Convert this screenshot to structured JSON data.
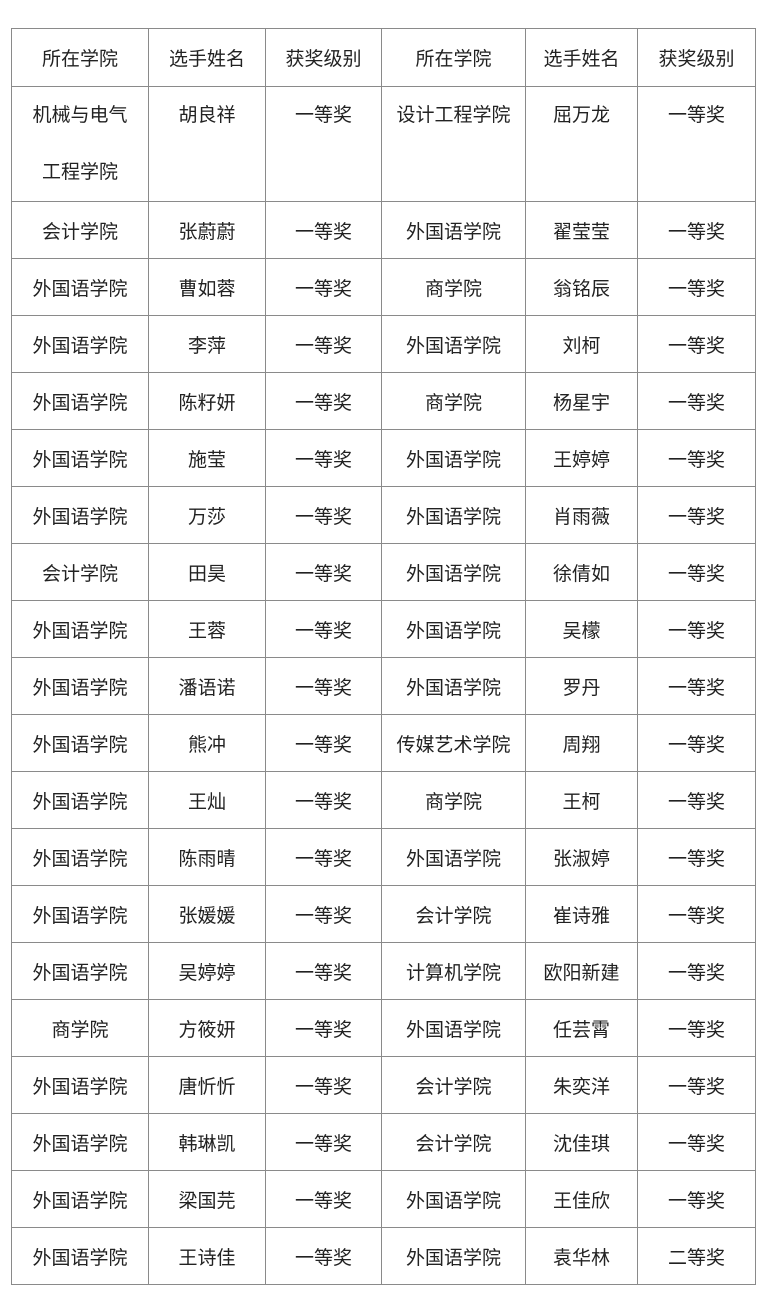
{
  "headers": [
    "所在学院",
    "选手姓名",
    "获奖级别",
    "所在学院",
    "选手姓名",
    "获奖级别"
  ],
  "rows": [
    [
      "机械与电气工程学院",
      "胡良祥",
      "一等奖",
      "设计工程学院",
      "屈万龙",
      "一等奖"
    ],
    [
      "会计学院",
      "张蔚蔚",
      "一等奖",
      "外国语学院",
      "翟莹莹",
      "一等奖"
    ],
    [
      "外国语学院",
      "曹如蓉",
      "一等奖",
      "商学院",
      "翁铭辰",
      "一等奖"
    ],
    [
      "外国语学院",
      "李萍",
      "一等奖",
      "外国语学院",
      "刘柯",
      "一等奖"
    ],
    [
      "外国语学院",
      "陈籽妍",
      "一等奖",
      "商学院",
      "杨星宇",
      "一等奖"
    ],
    [
      "外国语学院",
      "施莹",
      "一等奖",
      "外国语学院",
      "王婷婷",
      "一等奖"
    ],
    [
      "外国语学院",
      "万莎",
      "一等奖",
      "外国语学院",
      "肖雨薇",
      "一等奖"
    ],
    [
      "会计学院",
      "田昊",
      "一等奖",
      "外国语学院",
      "徐倩如",
      "一等奖"
    ],
    [
      "外国语学院",
      "王蓉",
      "一等奖",
      "外国语学院",
      "吴檬",
      "一等奖"
    ],
    [
      "外国语学院",
      "潘语诺",
      "一等奖",
      "外国语学院",
      "罗丹",
      "一等奖"
    ],
    [
      "外国语学院",
      "熊冲",
      "一等奖",
      "传媒艺术学院",
      "周翔",
      "一等奖"
    ],
    [
      "外国语学院",
      "王灿",
      "一等奖",
      "商学院",
      "王柯",
      "一等奖"
    ],
    [
      "外国语学院",
      "陈雨晴",
      "一等奖",
      "外国语学院",
      "张淑婷",
      "一等奖"
    ],
    [
      "外国语学院",
      "张媛媛",
      "一等奖",
      "会计学院",
      "崔诗雅",
      "一等奖"
    ],
    [
      "外国语学院",
      "吴婷婷",
      "一等奖",
      "计算机学院",
      "欧阳新建",
      "一等奖"
    ],
    [
      "商学院",
      "方筱妍",
      "一等奖",
      "外国语学院",
      "任芸霄",
      "一等奖"
    ],
    [
      "外国语学院",
      "唐忻忻",
      "一等奖",
      "会计学院",
      "朱奕洋",
      "一等奖"
    ],
    [
      "外国语学院",
      "韩琳凯",
      "一等奖",
      "会计学院",
      "沈佳琪",
      "一等奖"
    ],
    [
      "外国语学院",
      "梁国芫",
      "一等奖",
      "外国语学院",
      "王佳欣",
      "一等奖"
    ],
    [
      "外国语学院",
      "王诗佳",
      "一等奖",
      "外国语学院",
      "袁华林",
      "二等奖"
    ]
  ]
}
